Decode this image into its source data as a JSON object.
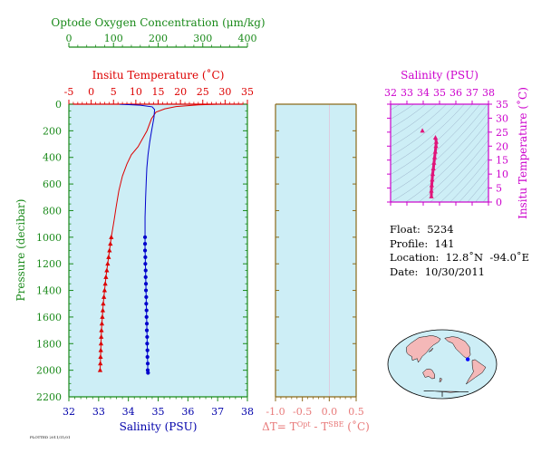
{
  "chart_data": [
    {
      "type": "line",
      "panel": "profile",
      "y_axis": {
        "label": "Pressure (decibar)",
        "range": [
          0,
          2200
        ],
        "reversed": true,
        "ticks": [
          "0",
          "200",
          "400",
          "600",
          "800",
          "1000",
          "1200",
          "1400",
          "1600",
          "1800",
          "2000",
          "2200"
        ],
        "color": "#1a8a1a"
      },
      "oxygen_axis": {
        "title": "Optode Oxygen Concentration (μm/kg)",
        "range": [
          0,
          400
        ],
        "ticks": [
          "0",
          "100",
          "200",
          "300",
          "400"
        ],
        "color": "#1a8a1a"
      },
      "temperature_axis": {
        "title": "Insitu Temperature (˚C)",
        "range": [
          -5,
          35
        ],
        "ticks": [
          "-5",
          "0",
          "5",
          "10",
          "15",
          "20",
          "25",
          "30",
          "35"
        ],
        "color": "#dd0000"
      },
      "salinity_axis": {
        "title": "Salinity (PSU)",
        "range": [
          32,
          38
        ],
        "ticks": [
          "32",
          "33",
          "34",
          "35",
          "36",
          "37",
          "38"
        ],
        "color": "#0000aa"
      },
      "series": [
        {
          "color": "#dd0000",
          "axis": "temperature",
          "line": [
            [
              28.5,
              0
            ],
            [
              24,
              5
            ],
            [
              19,
              18
            ],
            [
              16.5,
              35
            ],
            [
              14.5,
              60
            ],
            [
              13.5,
              110
            ],
            [
              12.5,
              200
            ],
            [
              11.5,
              260
            ],
            [
              10.5,
              320
            ],
            [
              9,
              380
            ],
            [
              8,
              450
            ],
            [
              7,
              540
            ],
            [
              6.2,
              650
            ],
            [
              5.6,
              770
            ],
            [
              5.1,
              880
            ],
            [
              4.5,
              1000
            ]
          ],
          "markers": [
            [
              4.5,
              1000
            ],
            [
              4.3,
              1050
            ],
            [
              4.1,
              1100
            ],
            [
              3.9,
              1150
            ],
            [
              3.7,
              1200
            ],
            [
              3.5,
              1250
            ],
            [
              3.3,
              1300
            ],
            [
              3.15,
              1350
            ],
            [
              3.0,
              1400
            ],
            [
              2.85,
              1450
            ],
            [
              2.7,
              1500
            ],
            [
              2.6,
              1550
            ],
            [
              2.5,
              1600
            ],
            [
              2.4,
              1650
            ],
            [
              2.3,
              1700
            ],
            [
              2.25,
              1750
            ],
            [
              2.2,
              1800
            ],
            [
              2.15,
              1850
            ],
            [
              2.1,
              1900
            ],
            [
              2.05,
              1950
            ],
            [
              2.0,
              2000
            ]
          ]
        },
        {
          "color": "#0000cc",
          "axis": "salinity",
          "line": [
            [
              33.7,
              0
            ],
            [
              34.4,
              8
            ],
            [
              34.8,
              20
            ],
            [
              34.88,
              40
            ],
            [
              34.86,
              100
            ],
            [
              34.82,
              150
            ],
            [
              34.78,
              200
            ],
            [
              34.72,
              280
            ],
            [
              34.66,
              380
            ],
            [
              34.62,
              480
            ],
            [
              34.6,
              580
            ],
            [
              34.58,
              700
            ],
            [
              34.56,
              850
            ],
            [
              34.56,
              1000
            ]
          ],
          "markers": [
            [
              34.56,
              1000
            ],
            [
              34.56,
              1050
            ],
            [
              34.56,
              1100
            ],
            [
              34.57,
              1150
            ],
            [
              34.57,
              1200
            ],
            [
              34.58,
              1250
            ],
            [
              34.58,
              1300
            ],
            [
              34.59,
              1350
            ],
            [
              34.59,
              1400
            ],
            [
              34.6,
              1450
            ],
            [
              34.6,
              1500
            ],
            [
              34.61,
              1550
            ],
            [
              34.61,
              1600
            ],
            [
              34.62,
              1650
            ],
            [
              34.62,
              1700
            ],
            [
              34.63,
              1750
            ],
            [
              34.63,
              1800
            ],
            [
              34.64,
              1850
            ],
            [
              34.64,
              1900
            ],
            [
              34.65,
              1950
            ],
            [
              34.65,
              2000
            ],
            [
              34.66,
              2020
            ]
          ]
        }
      ]
    },
    {
      "type": "line",
      "panel": "temperature-difference",
      "xlabel": "ΔT= T",
      "xlabel_sup1": "Opt",
      "xlabel_mid": " - T",
      "xlabel_sup2": "SBE",
      "xlabel_end": " (˚C)",
      "range": [
        -1.0,
        0.5
      ],
      "ticks": [
        "-1.0",
        "-0.5",
        "0.0",
        "0.5"
      ],
      "values": []
    },
    {
      "type": "scatter",
      "panel": "ts-diagram",
      "x_axis": {
        "title": "Salinity (PSU)",
        "range": [
          32,
          38
        ],
        "ticks": [
          "32",
          "33",
          "34",
          "35",
          "36",
          "37",
          "38"
        ],
        "color": "#cc00cc"
      },
      "y_axis": {
        "title": "Insitu Temperature (˚C)",
        "range": [
          0,
          35
        ],
        "ticks": [
          "0",
          "5",
          "10",
          "15",
          "20",
          "25",
          "30",
          "35"
        ],
        "color": "#cc00cc"
      },
      "points": [
        [
          34.5,
          2
        ],
        [
          34.5,
          4
        ],
        [
          34.52,
          6
        ],
        [
          34.55,
          8
        ],
        [
          34.58,
          10
        ],
        [
          34.62,
          12
        ],
        [
          34.66,
          14
        ],
        [
          34.7,
          16
        ],
        [
          34.74,
          18
        ],
        [
          34.78,
          20
        ],
        [
          34.8,
          21.5
        ],
        [
          34.75,
          23
        ],
        [
          33.95,
          25.5
        ]
      ]
    },
    {
      "type": "other",
      "panel": "map",
      "location_marker": [
        -94.0,
        12.8
      ]
    }
  ],
  "info": {
    "float": "Float:  5234",
    "profile": "Profile:  141",
    "location": "Location:  12.8˚N  -94.0˚E",
    "date": "Date:  10/30/2011"
  },
  "footer_note": "PLOTTED 2011/11/01"
}
